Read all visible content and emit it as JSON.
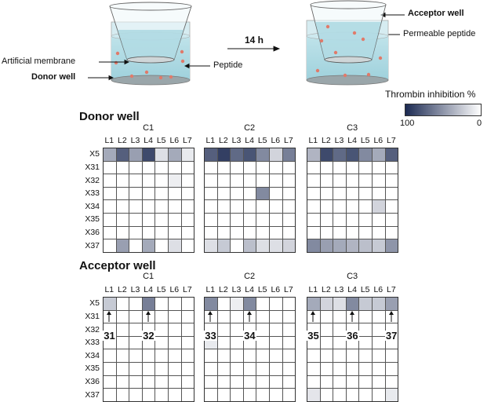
{
  "schematic": {
    "artificial_membrane_label": "Artificial membrane",
    "donor_well_label": "Donor well",
    "peptide_label": "Peptide",
    "time_label": "14 h",
    "acceptor_well_label": "Acceptor well",
    "permeable_peptide_label": "Permeable peptide"
  },
  "legend": {
    "title": "Thrombin inhibition %",
    "max_label": "100",
    "min_label": "0",
    "color_max": "#1c2a52",
    "color_min": "#ffffff"
  },
  "columns": [
    "L1",
    "L2",
    "L3",
    "L4",
    "L5",
    "L6",
    "L7"
  ],
  "rows": [
    "X5",
    "X31",
    "X32",
    "X33",
    "X34",
    "X35",
    "X36",
    "X37"
  ],
  "groups": [
    "C1",
    "C2",
    "C3"
  ],
  "donor": {
    "title": "Donor well",
    "heatmaps": [
      {
        "group": "C1",
        "values": [
          [
            40,
            75,
            45,
            85,
            15,
            40,
            10
          ],
          [
            0,
            0,
            0,
            0,
            0,
            0,
            0
          ],
          [
            0,
            0,
            0,
            0,
            0,
            8,
            0
          ],
          [
            0,
            0,
            0,
            0,
            0,
            0,
            0
          ],
          [
            0,
            0,
            0,
            0,
            0,
            0,
            0
          ],
          [
            0,
            0,
            0,
            0,
            0,
            0,
            0
          ],
          [
            0,
            0,
            0,
            0,
            0,
            0,
            0
          ],
          [
            0,
            45,
            0,
            40,
            0,
            15,
            0
          ]
        ]
      },
      {
        "group": "C2",
        "values": [
          [
            75,
            90,
            70,
            80,
            55,
            20,
            60
          ],
          [
            0,
            0,
            0,
            0,
            0,
            0,
            0
          ],
          [
            0,
            0,
            0,
            0,
            0,
            0,
            0
          ],
          [
            0,
            0,
            0,
            0,
            55,
            0,
            0
          ],
          [
            0,
            0,
            0,
            0,
            0,
            0,
            0
          ],
          [
            0,
            0,
            0,
            0,
            0,
            0,
            0
          ],
          [
            0,
            0,
            0,
            0,
            0,
            0,
            0
          ],
          [
            15,
            25,
            0,
            30,
            15,
            15,
            20
          ]
        ]
      },
      {
        "group": "C3",
        "values": [
          [
            35,
            85,
            70,
            80,
            55,
            40,
            75
          ],
          [
            0,
            0,
            0,
            0,
            0,
            0,
            0
          ],
          [
            0,
            0,
            0,
            0,
            0,
            0,
            0
          ],
          [
            0,
            0,
            0,
            0,
            0,
            0,
            0
          ],
          [
            0,
            0,
            0,
            0,
            0,
            20,
            0
          ],
          [
            0,
            0,
            0,
            0,
            0,
            0,
            0
          ],
          [
            0,
            0,
            0,
            0,
            0,
            0,
            0
          ],
          [
            55,
            45,
            40,
            35,
            30,
            25,
            50
          ]
        ]
      }
    ]
  },
  "acceptor": {
    "title": "Acceptor well",
    "heatmaps": [
      {
        "group": "C1",
        "values": [
          [
            25,
            0,
            0,
            60,
            0,
            0,
            0
          ],
          [
            0,
            0,
            0,
            0,
            0,
            0,
            0
          ],
          [
            0,
            0,
            0,
            0,
            0,
            0,
            0
          ],
          [
            0,
            0,
            0,
            0,
            0,
            0,
            0
          ],
          [
            0,
            0,
            0,
            0,
            0,
            0,
            0
          ],
          [
            0,
            0,
            0,
            0,
            0,
            0,
            0
          ],
          [
            0,
            0,
            0,
            0,
            0,
            0,
            0
          ],
          [
            0,
            0,
            0,
            0,
            0,
            0,
            0
          ]
        ]
      },
      {
        "group": "C2",
        "values": [
          [
            55,
            0,
            8,
            55,
            0,
            0,
            0
          ],
          [
            0,
            0,
            0,
            0,
            0,
            0,
            0
          ],
          [
            0,
            0,
            0,
            0,
            0,
            0,
            0
          ],
          [
            10,
            0,
            0,
            0,
            0,
            0,
            0
          ],
          [
            0,
            0,
            0,
            0,
            0,
            0,
            0
          ],
          [
            0,
            0,
            0,
            0,
            0,
            0,
            0
          ],
          [
            0,
            0,
            0,
            0,
            0,
            0,
            0
          ],
          [
            0,
            0,
            0,
            0,
            0,
            0,
            0
          ]
        ]
      },
      {
        "group": "C3",
        "values": [
          [
            40,
            20,
            15,
            55,
            25,
            25,
            45
          ],
          [
            0,
            0,
            0,
            0,
            0,
            0,
            0
          ],
          [
            0,
            0,
            0,
            0,
            0,
            0,
            0
          ],
          [
            0,
            0,
            0,
            0,
            0,
            0,
            0
          ],
          [
            0,
            0,
            0,
            0,
            0,
            0,
            0
          ],
          [
            0,
            0,
            0,
            0,
            0,
            0,
            0
          ],
          [
            0,
            0,
            0,
            0,
            0,
            0,
            0
          ],
          [
            12,
            0,
            0,
            0,
            0,
            0,
            10
          ]
        ]
      }
    ],
    "callouts": [
      {
        "label": "31",
        "group": "C1",
        "column": "L1"
      },
      {
        "label": "32",
        "group": "C1",
        "column": "L4"
      },
      {
        "label": "33",
        "group": "C2",
        "column": "L1"
      },
      {
        "label": "34",
        "group": "C2",
        "column": "L4"
      },
      {
        "label": "35",
        "group": "C3",
        "column": "L1"
      },
      {
        "label": "36",
        "group": "C3",
        "column": "L4"
      },
      {
        "label": "37",
        "group": "C3",
        "column": "L7"
      }
    ]
  }
}
